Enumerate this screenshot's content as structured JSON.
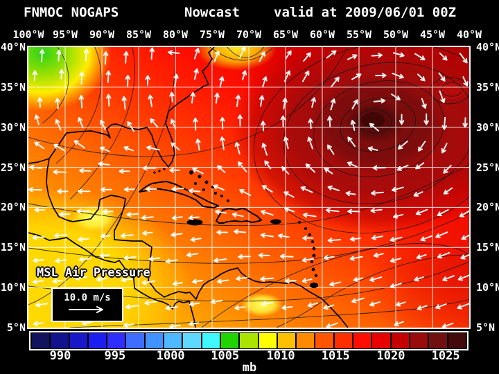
{
  "title": {
    "model": "FNMOC NOGAPS",
    "product": "Nowcast",
    "valid": "valid at 2009/06/01 00Z"
  },
  "axes": {
    "top": [
      "100°W",
      "95°W",
      "90°W",
      "85°W",
      "80°W",
      "75°W",
      "70°W",
      "65°W",
      "60°W",
      "55°W",
      "50°W",
      "45°W",
      "40°W"
    ],
    "left": [
      "40°N",
      "35°N",
      "30°N",
      "25°N",
      "20°N",
      "15°N",
      "10°N",
      "5°N"
    ],
    "right": [
      "40°N",
      "35°N",
      "30°N",
      "25°N",
      "20°N",
      "15°N",
      "10°N",
      "5°N"
    ]
  },
  "map": {
    "field_label": "MSL Air Pressure",
    "wind_legend_label": "10.0 m/s"
  },
  "colorbar": {
    "unit": "mb",
    "ticks": [
      "990",
      "995",
      "1000",
      "1005",
      "1010",
      "1015",
      "1020",
      "1025"
    ],
    "swatches": [
      "#12125e",
      "#12128f",
      "#1818c8",
      "#1d1df0",
      "#2e2eff",
      "#3e6eff",
      "#4092ff",
      "#4fb8ff",
      "#5ed8ff",
      "#40f8ff",
      "#20d400",
      "#aae400",
      "#ffff00",
      "#ffc000",
      "#ff8a00",
      "#ff5400",
      "#ff2e00",
      "#ff0e00",
      "#e60000",
      "#c60000",
      "#980c0c",
      "#701010",
      "#420a0a"
    ]
  }
}
